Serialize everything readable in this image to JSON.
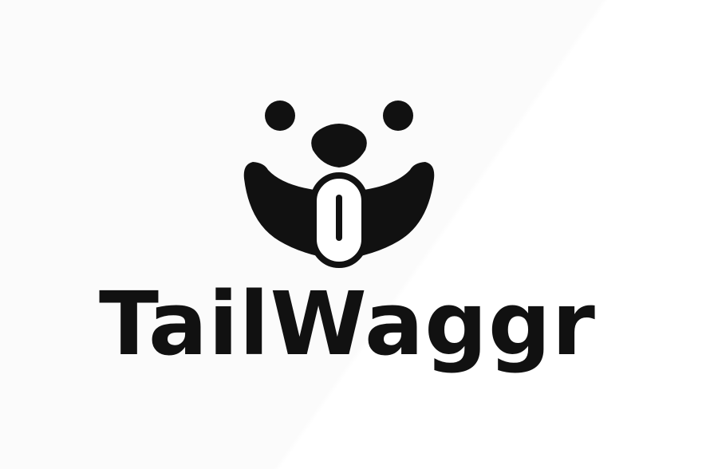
{
  "brand": {
    "name": "TailWaggr",
    "logo_icon": "dog-face-icon",
    "colors": {
      "ink": "#111111",
      "background": "#fcfcfc",
      "highlight": "#ffffff"
    }
  }
}
